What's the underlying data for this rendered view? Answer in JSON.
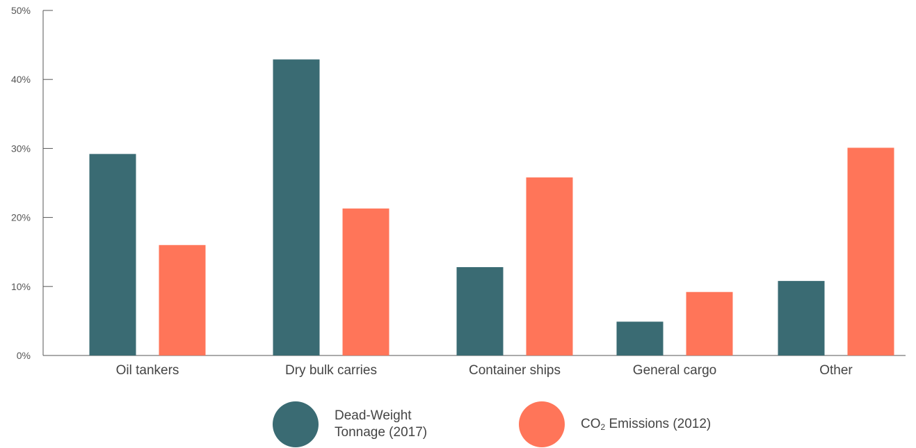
{
  "chart_data": {
    "type": "bar",
    "categories": [
      "Oil tankers",
      "Dry bulk carries",
      "Container ships",
      "General cargo",
      "Other"
    ],
    "series": [
      {
        "name": "Dead-Weight Tonnage (2017)",
        "color": "#3a6b73",
        "values": [
          29.2,
          42.9,
          12.8,
          4.9,
          10.8
        ]
      },
      {
        "name": "CO2 Emissions (2012)",
        "color": "#ff7559",
        "values": [
          16.0,
          21.3,
          25.8,
          9.2,
          30.1
        ]
      }
    ],
    "yticks": [
      "0%",
      "10%",
      "20%",
      "30%",
      "40%",
      "50%"
    ],
    "ylim": [
      0,
      50
    ],
    "xlabel": "",
    "ylabel": "",
    "grid": false,
    "legend_position": "bottom-center"
  },
  "legend": {
    "dwt_line1": "Dead-Weight",
    "dwt_line2": "Tonnage (2017)",
    "co2_prefix": "CO",
    "co2_sub": "2",
    "co2_suffix": " Emissions (2012)"
  }
}
